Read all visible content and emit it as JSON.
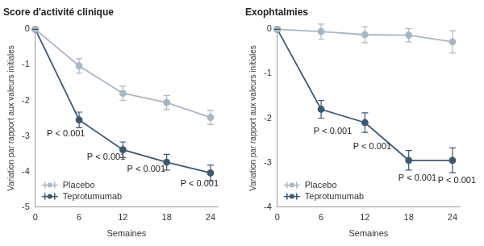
{
  "chart_data": [
    {
      "type": "line",
      "title": "Score d'activité clinique",
      "x_label": "Semaines",
      "y_label": "Variation par rapport aux valeurs initiales",
      "x": [
        0,
        6,
        12,
        18,
        24
      ],
      "xlim": [
        0,
        25
      ],
      "xticks": [
        0,
        6,
        12,
        18,
        24
      ],
      "ylim": [
        -5,
        0
      ],
      "yticks": [
        0,
        -1,
        -2,
        -3,
        -4,
        -5
      ],
      "grid": false,
      "legend": "lower left",
      "series": [
        {
          "name": "Placebo",
          "color": "#a9b7c4",
          "marker": "circle",
          "line_style": "solid",
          "values": [
            0,
            -1.03,
            -1.8,
            -2.06,
            -2.48
          ],
          "errors": [
            0,
            0.2,
            0.2,
            0.2,
            0.2
          ]
        },
        {
          "name": "Teprotumumab",
          "color": "#3e5872",
          "marker": "circle",
          "line_style": "solid",
          "values": [
            0,
            -2.55,
            -3.39,
            -3.74,
            -4.04
          ],
          "errors": [
            0,
            0.22,
            0.22,
            0.22,
            0.22
          ]
        }
      ],
      "annotations": [
        {
          "x": 4.2,
          "y": -2.95,
          "text": "P < 0.001"
        },
        {
          "x": 9.7,
          "y": -3.6,
          "text": "P < 0.001"
        },
        {
          "x": 15.2,
          "y": -3.95,
          "text": "P < 0.001"
        },
        {
          "x": 22.5,
          "y": -4.35,
          "text": "P < 0.001"
        }
      ]
    },
    {
      "type": "line",
      "title": "Exophtalmies",
      "x_label": "Semaines",
      "y_label": "Variation par rapport aux valeurs initiales",
      "x": [
        0,
        6,
        12,
        18,
        24
      ],
      "xlim": [
        0,
        25
      ],
      "xticks": [
        0,
        6,
        12,
        18,
        24
      ],
      "ylim": [
        -4,
        0
      ],
      "yticks": [
        0,
        -1,
        -2,
        -3,
        -4
      ],
      "grid": false,
      "legend": "lower left",
      "series": [
        {
          "name": "Placebo",
          "color": "#a9b7c4",
          "marker": "circle",
          "line_style": "solid",
          "values": [
            0,
            -0.05,
            -0.12,
            -0.13,
            -0.28
          ],
          "errors": [
            0,
            0.17,
            0.18,
            0.15,
            0.25
          ]
        },
        {
          "name": "Teprotumumab",
          "color": "#3e5872",
          "marker": "circle",
          "line_style": "solid",
          "values": [
            0,
            -1.8,
            -2.1,
            -2.95,
            -2.95
          ],
          "errors": [
            0,
            0.2,
            0.22,
            0.22,
            0.28
          ]
        }
      ],
      "annotations": [
        {
          "x": 7.6,
          "y": -2.3,
          "text": "P < 0.001"
        },
        {
          "x": 13.0,
          "y": -2.65,
          "text": "P < 0.001"
        },
        {
          "x": 19.2,
          "y": -3.35,
          "text": "P < 0.001"
        },
        {
          "x": 24.6,
          "y": -3.4,
          "text": "P < 0.001"
        }
      ]
    }
  ]
}
